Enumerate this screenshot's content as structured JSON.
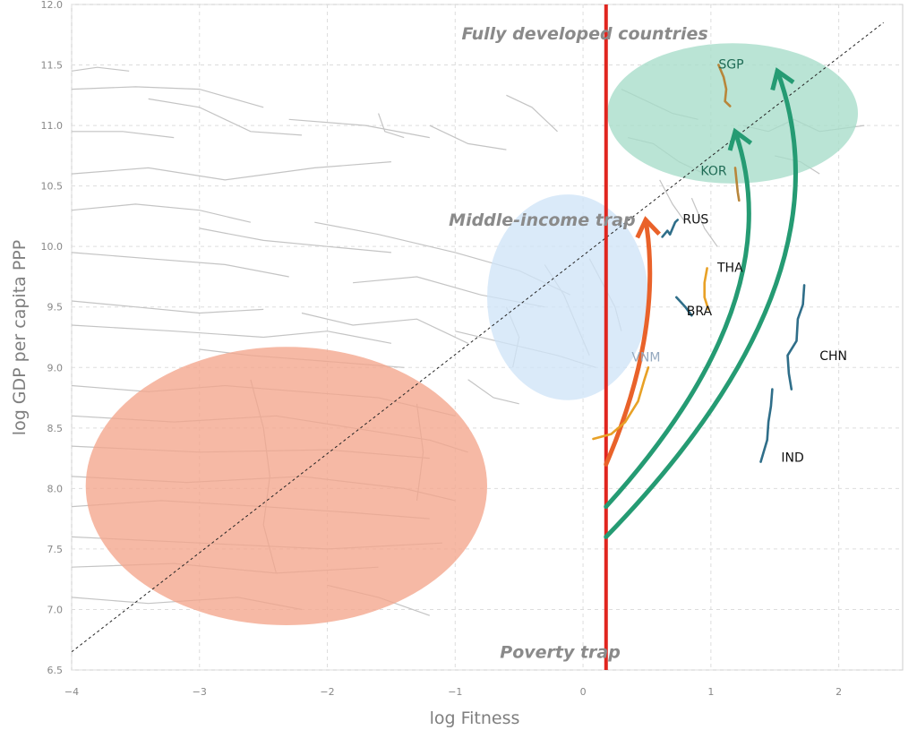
{
  "chart_data": {
    "type": "scatter",
    "xlabel": "log Fitness",
    "ylabel": "log GDP per capita PPP",
    "xlim": [
      -4,
      2.5
    ],
    "ylim": [
      6.5,
      12.0
    ],
    "x_ticks": [
      -4,
      -3,
      -2,
      -1,
      0,
      1,
      2
    ],
    "x_tick_labels": [
      "−4",
      "−3",
      "−2",
      "−1",
      "0",
      "1",
      "2"
    ],
    "y_ticks": [
      6.5,
      7.0,
      7.5,
      8.0,
      8.5,
      9.0,
      9.5,
      10.0,
      10.5,
      11.0,
      11.5,
      12.0
    ],
    "y_tick_labels": [
      "6.5",
      "7.0",
      "7.5",
      "8.0",
      "8.5",
      "9.0",
      "9.5",
      "10.0",
      "10.5",
      "11.0",
      "11.5",
      "12.0"
    ],
    "grid": true,
    "diagonal_reference": [
      [
        -4,
        6.65
      ],
      [
        2.35,
        11.85
      ]
    ],
    "vertical_threshold_x": 0.18,
    "regions": [
      {
        "label": "Poverty trap",
        "cx": -2.32,
        "cy": 8.02,
        "rx": 1.57,
        "ry": 1.15,
        "color": "#f3a58c",
        "label_at": [
          -0.65,
          6.6
        ]
      },
      {
        "label": "Middle-income trap",
        "cx": -0.12,
        "cy": 9.58,
        "rx": 0.63,
        "ry": 0.85,
        "color": "#cfe4f7",
        "label_at": [
          -1.05,
          10.17
        ]
      },
      {
        "label": "Fully developed countries",
        "cx": 1.17,
        "cy": 11.1,
        "rx": 0.98,
        "ry": 0.58,
        "color": "#a6dcc9",
        "label_at": [
          -0.95,
          11.71
        ]
      }
    ],
    "arrows": [
      {
        "color": "#e9622a",
        "from": [
          0.18,
          8.2
        ],
        "to": [
          0.49,
          10.22
        ]
      },
      {
        "color": "#259b73",
        "from": [
          0.18,
          7.85
        ],
        "to": [
          1.19,
          10.95
        ]
      },
      {
        "color": "#259b73",
        "from": [
          0.18,
          7.6
        ],
        "to": [
          1.52,
          11.45
        ]
      }
    ],
    "series": [
      {
        "name": "SGP",
        "color": "#b8863a",
        "label_color": "#1f6b55",
        "points": [
          [
            1.06,
            11.5
          ],
          [
            1.1,
            11.4
          ],
          [
            1.12,
            11.3
          ],
          [
            1.11,
            11.2
          ],
          [
            1.15,
            11.16
          ]
        ],
        "label_at": [
          1.06,
          11.47
        ]
      },
      {
        "name": "KOR",
        "color": "#b8863a",
        "label_color": "#1f6b55",
        "points": [
          [
            1.19,
            10.65
          ],
          [
            1.2,
            10.55
          ],
          [
            1.21,
            10.45
          ],
          [
            1.22,
            10.38
          ]
        ],
        "label_at": [
          0.92,
          10.59
        ]
      },
      {
        "name": "RUS",
        "color": "#2f6e89",
        "label_color": "#111111",
        "points": [
          [
            0.62,
            10.08
          ],
          [
            0.66,
            10.13
          ],
          [
            0.68,
            10.1
          ],
          [
            0.72,
            10.2
          ],
          [
            0.74,
            10.22
          ]
        ],
        "label_at": [
          0.78,
          10.19
        ]
      },
      {
        "name": "THA",
        "color": "#e8a126",
        "label_color": "#111111",
        "points": [
          [
            0.97,
            9.82
          ],
          [
            0.95,
            9.7
          ],
          [
            0.95,
            9.58
          ],
          [
            0.98,
            9.48
          ]
        ],
        "label_at": [
          1.05,
          9.79
        ]
      },
      {
        "name": "BRA",
        "color": "#2f6e89",
        "label_color": "#111111",
        "points": [
          [
            0.73,
            9.58
          ],
          [
            0.8,
            9.5
          ],
          [
            0.85,
            9.43
          ]
        ],
        "label_at": [
          0.81,
          9.43
        ]
      },
      {
        "name": "VNM",
        "color": "#e8a126",
        "label_color": "#95a9bf",
        "points": [
          [
            0.08,
            8.41
          ],
          [
            0.22,
            8.45
          ],
          [
            0.33,
            8.55
          ],
          [
            0.43,
            8.72
          ],
          [
            0.48,
            8.9
          ],
          [
            0.51,
            9.0
          ]
        ],
        "label_at": [
          0.38,
          9.05
        ]
      },
      {
        "name": "CHN",
        "color": "#2f6e89",
        "label_color": "#111111",
        "points": [
          [
            1.73,
            9.68
          ],
          [
            1.72,
            9.52
          ],
          [
            1.68,
            9.4
          ],
          [
            1.67,
            9.22
          ],
          [
            1.6,
            9.1
          ],
          [
            1.61,
            8.95
          ],
          [
            1.63,
            8.82
          ]
        ],
        "label_at": [
          1.85,
          9.06
        ]
      },
      {
        "name": "IND",
        "color": "#2f6e89",
        "label_color": "#111111",
        "points": [
          [
            1.48,
            8.82
          ],
          [
            1.47,
            8.68
          ],
          [
            1.45,
            8.55
          ],
          [
            1.44,
            8.4
          ],
          [
            1.39,
            8.22
          ]
        ],
        "label_at": [
          1.55,
          8.22
        ]
      }
    ],
    "background_trajectories": [
      [
        [
          -4,
          11.45
        ],
        [
          -3.8,
          11.48
        ],
        [
          -3.55,
          11.45
        ]
      ],
      [
        [
          -4,
          11.3
        ],
        [
          -3.5,
          11.32
        ],
        [
          -3.0,
          11.3
        ],
        [
          -2.5,
          11.15
        ]
      ],
      [
        [
          -3.4,
          11.22
        ],
        [
          -3.0,
          11.15
        ],
        [
          -2.6,
          10.95
        ],
        [
          -2.2,
          10.92
        ]
      ],
      [
        [
          -4,
          10.95
        ],
        [
          -3.6,
          10.95
        ],
        [
          -3.2,
          10.9
        ]
      ],
      [
        [
          -4,
          10.6
        ],
        [
          -3.4,
          10.65
        ],
        [
          -2.8,
          10.55
        ],
        [
          -2.1,
          10.65
        ],
        [
          -1.5,
          10.7
        ]
      ],
      [
        [
          -2.3,
          11.05
        ],
        [
          -1.7,
          11.0
        ],
        [
          -1.2,
          10.9
        ]
      ],
      [
        [
          -1.6,
          11.1
        ],
        [
          -1.55,
          10.95
        ],
        [
          -1.4,
          10.9
        ]
      ],
      [
        [
          -1.2,
          11.0
        ],
        [
          -0.9,
          10.85
        ],
        [
          -0.6,
          10.8
        ]
      ],
      [
        [
          -0.6,
          11.25
        ],
        [
          -0.4,
          11.15
        ],
        [
          -0.2,
          10.95
        ]
      ],
      [
        [
          -4,
          10.3
        ],
        [
          -3.5,
          10.35
        ],
        [
          -3.0,
          10.3
        ],
        [
          -2.6,
          10.2
        ]
      ],
      [
        [
          -3.0,
          10.15
        ],
        [
          -2.5,
          10.05
        ],
        [
          -2.0,
          10.0
        ],
        [
          -1.5,
          9.95
        ]
      ],
      [
        [
          -4,
          9.95
        ],
        [
          -3.4,
          9.9
        ],
        [
          -2.8,
          9.85
        ],
        [
          -2.3,
          9.75
        ]
      ],
      [
        [
          -2.1,
          10.2
        ],
        [
          -1.6,
          10.1
        ],
        [
          -1.0,
          9.95
        ],
        [
          -0.5,
          9.8
        ],
        [
          -0.1,
          9.6
        ]
      ],
      [
        [
          -1.8,
          9.7
        ],
        [
          -1.3,
          9.75
        ],
        [
          -0.8,
          9.6
        ],
        [
          -0.3,
          9.5
        ]
      ],
      [
        [
          -4,
          9.55
        ],
        [
          -3.5,
          9.5
        ],
        [
          -3.0,
          9.45
        ],
        [
          -2.5,
          9.48
        ]
      ],
      [
        [
          -4,
          9.35
        ],
        [
          -3.2,
          9.3
        ],
        [
          -2.5,
          9.25
        ],
        [
          -2.0,
          9.3
        ],
        [
          -1.5,
          9.2
        ]
      ],
      [
        [
          -2.2,
          9.45
        ],
        [
          -1.8,
          9.35
        ],
        [
          -1.3,
          9.4
        ],
        [
          -0.9,
          9.2
        ]
      ],
      [
        [
          -3.0,
          9.15
        ],
        [
          -2.6,
          9.1
        ],
        [
          -2.0,
          9.05
        ],
        [
          -1.4,
          9.0
        ]
      ],
      [
        [
          -1.0,
          9.3
        ],
        [
          -0.6,
          9.2
        ],
        [
          -0.2,
          9.1
        ],
        [
          0.1,
          9.0
        ]
      ],
      [
        [
          -4,
          8.85
        ],
        [
          -3.4,
          8.8
        ],
        [
          -2.8,
          8.85
        ],
        [
          -2.2,
          8.8
        ],
        [
          -1.6,
          8.75
        ],
        [
          -1.0,
          8.6
        ]
      ],
      [
        [
          -4,
          8.6
        ],
        [
          -3.2,
          8.55
        ],
        [
          -2.4,
          8.6
        ],
        [
          -1.8,
          8.5
        ],
        [
          -1.2,
          8.4
        ],
        [
          -0.9,
          8.3
        ]
      ],
      [
        [
          -4,
          8.35
        ],
        [
          -3.0,
          8.3
        ],
        [
          -2.0,
          8.32
        ],
        [
          -1.2,
          8.25
        ]
      ],
      [
        [
          -4,
          8.1
        ],
        [
          -3.1,
          8.05
        ],
        [
          -2.2,
          8.1
        ],
        [
          -1.4,
          8.0
        ],
        [
          -1.0,
          7.9
        ]
      ],
      [
        [
          -4,
          7.85
        ],
        [
          -3.3,
          7.9
        ],
        [
          -2.5,
          7.85
        ],
        [
          -1.8,
          7.8
        ],
        [
          -1.2,
          7.75
        ]
      ],
      [
        [
          -4,
          7.6
        ],
        [
          -3.0,
          7.55
        ],
        [
          -2.0,
          7.5
        ],
        [
          -1.1,
          7.55
        ]
      ],
      [
        [
          -4,
          7.35
        ],
        [
          -3.2,
          7.38
        ],
        [
          -2.4,
          7.3
        ],
        [
          -1.6,
          7.35
        ]
      ],
      [
        [
          -4,
          7.1
        ],
        [
          -3.4,
          7.05
        ],
        [
          -2.7,
          7.1
        ],
        [
          -2.2,
          7.0
        ]
      ],
      [
        [
          -2.0,
          7.2
        ],
        [
          -1.6,
          7.1
        ],
        [
          -1.2,
          6.95
        ]
      ],
      [
        [
          -2.6,
          8.9
        ],
        [
          -2.5,
          8.5
        ],
        [
          -2.45,
          8.1
        ],
        [
          -2.5,
          7.7
        ],
        [
          -2.4,
          7.3
        ]
      ],
      [
        [
          -1.3,
          8.7
        ],
        [
          -1.25,
          8.3
        ],
        [
          -1.3,
          7.9
        ]
      ],
      [
        [
          -0.6,
          9.5
        ],
        [
          -0.5,
          9.25
        ],
        [
          -0.55,
          9.0
        ]
      ],
      [
        [
          -0.3,
          9.85
        ],
        [
          -0.15,
          9.6
        ],
        [
          -0.05,
          9.35
        ],
        [
          0.05,
          9.1
        ]
      ],
      [
        [
          0.05,
          9.9
        ],
        [
          0.15,
          9.7
        ],
        [
          0.25,
          9.5
        ],
        [
          0.3,
          9.3
        ]
      ],
      [
        [
          -0.9,
          8.9
        ],
        [
          -0.7,
          8.75
        ],
        [
          -0.5,
          8.7
        ]
      ],
      [
        [
          0.3,
          11.3
        ],
        [
          0.5,
          11.2
        ],
        [
          0.7,
          11.1
        ],
        [
          0.9,
          11.05
        ]
      ],
      [
        [
          0.35,
          10.9
        ],
        [
          0.55,
          10.85
        ],
        [
          0.75,
          10.7
        ],
        [
          0.95,
          10.6
        ]
      ],
      [
        [
          1.25,
          11.0
        ],
        [
          1.45,
          10.95
        ],
        [
          1.65,
          11.05
        ],
        [
          1.85,
          10.95
        ],
        [
          2.2,
          11.0
        ]
      ],
      [
        [
          1.5,
          10.75
        ],
        [
          1.7,
          10.7
        ],
        [
          1.85,
          10.6
        ]
      ],
      [
        [
          0.85,
          10.4
        ],
        [
          0.95,
          10.15
        ],
        [
          1.05,
          10.0
        ]
      ],
      [
        [
          0.6,
          10.55
        ],
        [
          0.7,
          10.35
        ],
        [
          0.8,
          10.2
        ]
      ]
    ]
  }
}
